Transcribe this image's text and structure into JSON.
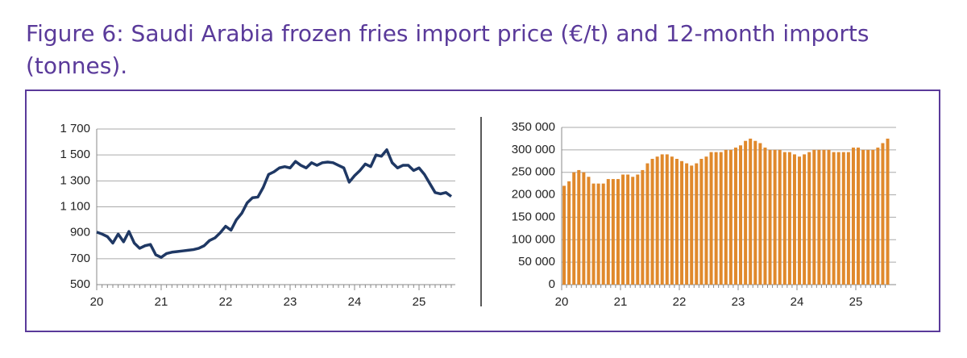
{
  "title": "Figure 6: Saudi Arabia frozen fries import price (€/t) and 12-month imports (tonnes).",
  "chart_data": [
    {
      "type": "line",
      "color": "#1f3864",
      "grid": true,
      "categories": [
        "20",
        null,
        null,
        null,
        null,
        null,
        null,
        null,
        null,
        null,
        null,
        null,
        "21",
        null,
        null,
        null,
        null,
        null,
        null,
        null,
        null,
        null,
        null,
        null,
        "22",
        null,
        null,
        null,
        null,
        null,
        null,
        null,
        null,
        null,
        null,
        null,
        "23",
        null,
        null,
        null,
        null,
        null,
        null,
        null,
        null,
        null,
        null,
        null,
        "24",
        null,
        null,
        null,
        null,
        null,
        null,
        null,
        null,
        null,
        null,
        null,
        "25",
        null,
        null,
        null,
        null,
        null,
        null
      ],
      "values": [
        905,
        890,
        870,
        820,
        890,
        830,
        910,
        820,
        780,
        800,
        810,
        730,
        710,
        740,
        750,
        755,
        760,
        765,
        770,
        780,
        800,
        840,
        860,
        900,
        950,
        920,
        1000,
        1050,
        1130,
        1170,
        1175,
        1250,
        1350,
        1370,
        1400,
        1410,
        1400,
        1450,
        1420,
        1400,
        1440,
        1420,
        1440,
        1445,
        1440,
        1420,
        1400,
        1290,
        1340,
        1380,
        1430,
        1410,
        1500,
        1490,
        1540,
        1440,
        1400,
        1420,
        1420,
        1380,
        1400,
        1350,
        1280,
        1210,
        1200,
        1210,
        1180
      ],
      "ylim": [
        500,
        1700
      ],
      "yticks": [
        500,
        700,
        900,
        {
          "value": 1100,
          "label": "1 100"
        },
        {
          "value": 1300,
          "label": "1 300"
        },
        {
          "value": 1500,
          "label": "1 500"
        },
        {
          "value": 1700,
          "label": "1 700"
        }
      ]
    },
    {
      "type": "bar",
      "color": "#e0892c",
      "grid": true,
      "categories": [
        "20",
        null,
        null,
        null,
        null,
        null,
        null,
        null,
        null,
        null,
        null,
        null,
        "21",
        null,
        null,
        null,
        null,
        null,
        null,
        null,
        null,
        null,
        null,
        null,
        "22",
        null,
        null,
        null,
        null,
        null,
        null,
        null,
        null,
        null,
        null,
        null,
        "23",
        null,
        null,
        null,
        null,
        null,
        null,
        null,
        null,
        null,
        null,
        null,
        "24",
        null,
        null,
        null,
        null,
        null,
        null,
        null,
        null,
        null,
        null,
        null,
        "25",
        null,
        null,
        null,
        null,
        null,
        null
      ],
      "values": [
        220000,
        230000,
        250000,
        255000,
        250000,
        240000,
        225000,
        225000,
        225000,
        235000,
        235000,
        235000,
        245000,
        245000,
        240000,
        245000,
        255000,
        270000,
        280000,
        285000,
        290000,
        290000,
        285000,
        280000,
        275000,
        270000,
        265000,
        270000,
        280000,
        285000,
        295000,
        295000,
        295000,
        300000,
        300000,
        305000,
        310000,
        320000,
        325000,
        320000,
        315000,
        305000,
        300000,
        300000,
        300000,
        295000,
        295000,
        290000,
        285000,
        290000,
        295000,
        300000,
        300000,
        300000,
        300000,
        295000,
        295000,
        295000,
        295000,
        305000,
        305000,
        300000,
        300000,
        300000,
        305000,
        315000,
        325000
      ],
      "ylim": [
        0,
        350000
      ],
      "yticks": [
        0,
        {
          "value": 50000,
          "label": "50 000"
        },
        {
          "value": 100000,
          "label": "100 000"
        },
        {
          "value": 150000,
          "label": "150 000"
        },
        {
          "value": 200000,
          "label": "200 000"
        },
        {
          "value": 250000,
          "label": "250 000"
        },
        {
          "value": 300000,
          "label": "300 000"
        },
        {
          "value": 350000,
          "label": "350 000"
        }
      ]
    }
  ]
}
